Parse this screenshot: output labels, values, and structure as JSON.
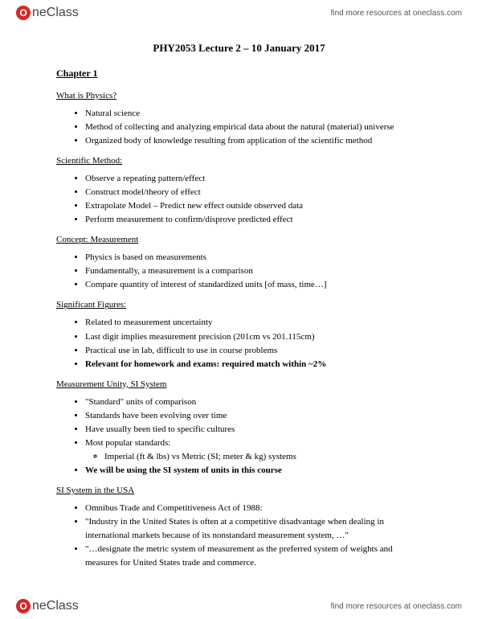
{
  "brand": {
    "logo_text": "neClass",
    "logo_icon_text": "O",
    "tagline": "find more resources at oneclass.com"
  },
  "document": {
    "title": "PHY2053 Lecture 2 – 10 January 2017",
    "chapter": "Chapter 1",
    "sections": {
      "s1": {
        "heading": "What is Physics?",
        "items": {
          "i0": "Natural science",
          "i1": "Method of collecting and analyzing empirical data about the natural (material) universe",
          "i2": "Organized body of knowledge resulting from application of the scientific method"
        }
      },
      "s2": {
        "heading": "Scientific Method:",
        "items": {
          "i0": "Observe a repeating pattern/effect",
          "i1": "Construct model/theory of effect",
          "i2": "Extrapolate Model – Predict new effect outside observed data",
          "i3": "Perform measurement to confirm/disprove predicted effect"
        }
      },
      "s3": {
        "heading": "Concept: Measurement",
        "items": {
          "i0": "Physics is based on measurements",
          "i1": "Fundamentally, a measurement is a comparison",
          "i2": "Compare quantity of interest of standardized units [of mass, time…]"
        }
      },
      "s4": {
        "heading": "Significant Figures:",
        "items": {
          "i0": "Related to measurement uncertainty",
          "i1": "Last digit implies measurement precision (201cm vs 201.115cm)",
          "i2": "Practical use in lab, difficult to use in course problems",
          "i3": "Relevant for homework and exams: required match within ~2%"
        }
      },
      "s5": {
        "heading": "Measurement Unity, SI System",
        "items": {
          "i0": "\"Standard\" units of comparison",
          "i1": "Standards have been evolving over time",
          "i2": "Have usually been tied to specific cultures",
          "i3": "Most popular standards:",
          "i3sub": "Imperial (ft & lbs) vs Metric (SI; meter & kg) systems",
          "i4": "We will be using the SI system of units in this course"
        }
      },
      "s6": {
        "heading": "SI System in the USA",
        "items": {
          "i0": "Omnibus Trade and Competitiveness Act of 1988:",
          "i1": "\"Industry in the United States is often at a competitive disadvantage when dealing in international markets because of its nonstandard measurement system, …\"",
          "i2": "\"…designate the metric system of measurement as the preferred system of weights and measures for United States trade and commerce."
        }
      }
    }
  }
}
